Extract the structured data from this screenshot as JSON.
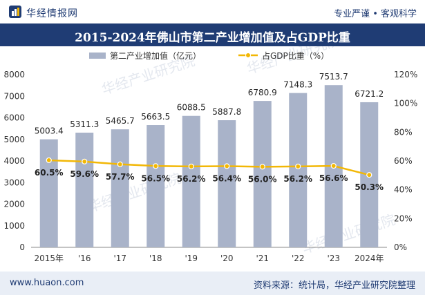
{
  "header": {
    "logo_icon": "huajing-logo-icon",
    "site_name": "华经情报网",
    "slogan": "专业严谨 • 客观科学"
  },
  "title": "2015-2024年佛山市第二产业增加值及占GDP比重",
  "footer": {
    "url": "www.huaon.com",
    "source": "资料来源：统计局，华经产业研究院整理"
  },
  "watermark": "华经产业研究院",
  "colors": {
    "header_bg": "#1f3c74",
    "bar": "#a9b3c9",
    "line": "#f2b705",
    "footer_bg": "#e9eef6"
  },
  "chart_data": {
    "type": "bar",
    "categories": [
      "2015年",
      "'16",
      "'17",
      "'18",
      "'19",
      "'20",
      "'21",
      "'22",
      "'23",
      "2024年"
    ],
    "series": [
      {
        "name": "第二产业增加值（亿元）",
        "type": "bar",
        "axis": "left",
        "values": [
          5003.4,
          5311.3,
          5465.7,
          5663.5,
          6088.5,
          5887.8,
          6780.9,
          7148.3,
          7513.7,
          6721.2
        ],
        "labels": [
          "5003.4",
          "5311.3",
          "5465.7",
          "5663.5",
          "6088.5",
          "5887.8",
          "6780.9",
          "7148.3",
          "7513.7",
          "6721.2"
        ]
      },
      {
        "name": "占GDP比重（%）",
        "type": "line",
        "axis": "right",
        "values": [
          60.5,
          59.6,
          57.7,
          56.5,
          56.2,
          56.4,
          56.0,
          56.2,
          56.6,
          50.3
        ],
        "labels": [
          "60.5%",
          "59.6%",
          "57.7%",
          "56.5%",
          "56.2%",
          "56.4%",
          "56.0%",
          "56.2%",
          "56.6%",
          "50.3%"
        ]
      }
    ],
    "y_left": {
      "min": 0,
      "max": 8000,
      "ticks": [
        "0",
        "1000",
        "2000",
        "3000",
        "4000",
        "5000",
        "6000",
        "7000",
        "8000"
      ]
    },
    "y_right": {
      "min": 0,
      "max": 120,
      "ticks": [
        "0%",
        "20%",
        "40%",
        "60%",
        "80%",
        "100%",
        "120%"
      ]
    },
    "legend_position": "top-center",
    "grid": false
  }
}
